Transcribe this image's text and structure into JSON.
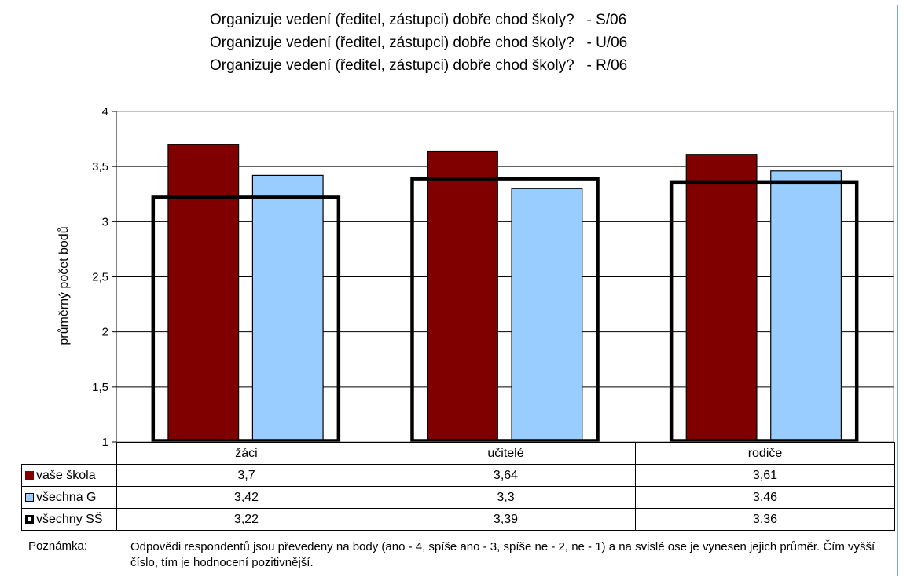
{
  "chart_data": {
    "type": "bar",
    "title_lines": [
      "Organizuje vedení (ředitel, zástupci) dobře chod školy?   - S/06",
      "Organizuje vedení (ředitel, zástupci) dobře chod školy?   - U/06",
      "Organizuje vedení (ředitel, zástupci) dobře chod školy?   - R/06"
    ],
    "ylabel": "průměrný počet bodů",
    "xlabel": "",
    "ylim": [
      1,
      4
    ],
    "yticks": [
      "4",
      "3,5",
      "3",
      "2,5",
      "2",
      "1,5",
      "1"
    ],
    "ytick_values": [
      4,
      3.5,
      3,
      2.5,
      2,
      1.5,
      1
    ],
    "grid": true,
    "categories": [
      "žáci",
      "učitelé",
      "rodiče"
    ],
    "series": [
      {
        "name": "vaše škola",
        "values": [
          3.7,
          3.64,
          3.61
        ],
        "labels": [
          "3,7",
          "3,64",
          "3,61"
        ],
        "color": "#800000",
        "style": "filled-bar"
      },
      {
        "name": "všechna G",
        "values": [
          3.42,
          3.3,
          3.46
        ],
        "labels": [
          "3,42",
          "3,3",
          "3,46"
        ],
        "color": "#99ccff",
        "style": "filled-bar"
      },
      {
        "name": "všechny SŠ",
        "values": [
          3.22,
          3.39,
          3.36
        ],
        "labels": [
          "3,22",
          "3,39",
          "3,36"
        ],
        "color": "#000000",
        "style": "outline-bar"
      }
    ],
    "legend_placement": "data-table"
  },
  "note": {
    "label": "Poznámka:",
    "text": "Odpovědi respondentů jsou převedeny na body (ano - 4, spíše ano - 3, spíše ne - 2, ne - 1) a na svislé ose je vynesen jejich průměr. Čím vyšší číslo, tím je hodnocení pozitivnější."
  }
}
